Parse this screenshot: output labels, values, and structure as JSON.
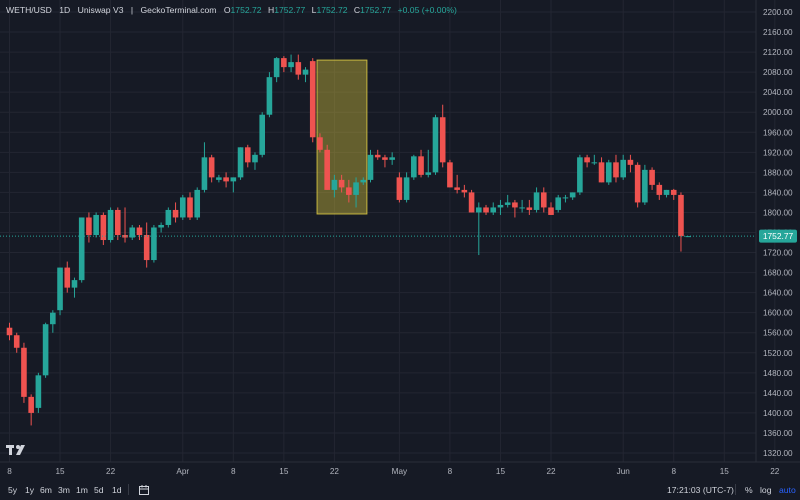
{
  "header": {
    "symbol": "WETH/USD",
    "interval": "1D",
    "exchange": "Uniswap V3",
    "separator": "|",
    "source": "GeckoTerminal.com",
    "o_label": "O",
    "o_value": "1752.72",
    "h_label": "H",
    "h_value": "1752.77",
    "l_label": "L",
    "l_value": "1752.72",
    "c_label": "C",
    "c_value": "1752.77",
    "change": "+0.05 (+0.00%)"
  },
  "colors": {
    "background": "#161a25",
    "up": "#26a69a",
    "down": "#ef5350",
    "highlight_fill": "rgba(210,190,60,0.42)",
    "highlight_stroke": "#c8b840",
    "grid": "#232632",
    "axis_text": "#b2b5be",
    "last_price_bg": "#26a69a"
  },
  "bottom_toolbar": {
    "ranges": [
      "5y",
      "1y",
      "6m",
      "3m",
      "1m",
      "5d",
      "1d"
    ],
    "goto_icon": "calendar-range-icon",
    "time": "17:21:03 (UTC-7)",
    "percent": "%",
    "log": "log",
    "auto": "auto"
  },
  "chart_data": {
    "type": "candlestick",
    "y_ticks": [
      1320,
      1360,
      1400,
      1440,
      1480,
      1520,
      1560,
      1600,
      1640,
      1680,
      1720,
      1760,
      1800,
      1840,
      1880,
      1920,
      1960,
      2000,
      2040,
      2080,
      2120,
      2160,
      2200
    ],
    "y_tick_labels": [
      "1320.00",
      "1360.00",
      "1400.00",
      "1440.00",
      "1480.00",
      "1520.00",
      "1560.00",
      "1600.00",
      "1640.00",
      "1680.00",
      "1720.00",
      "1760.00",
      "1800.00",
      "1840.00",
      "1880.00",
      "1920.00",
      "1960.00",
      "2000.00",
      "2040.00",
      "2080.00",
      "2120.00",
      "2160.00",
      "2200.00"
    ],
    "x_ticks": [
      {
        "label": "8",
        "day": 0
      },
      {
        "label": "15",
        "day": 7
      },
      {
        "label": "22",
        "day": 14
      },
      {
        "label": "Apr",
        "day": 24
      },
      {
        "label": "8",
        "day": 31
      },
      {
        "label": "15",
        "day": 38
      },
      {
        "label": "22",
        "day": 45
      },
      {
        "label": "May",
        "day": 54
      },
      {
        "label": "8",
        "day": 61
      },
      {
        "label": "15",
        "day": 68
      },
      {
        "label": "22",
        "day": 75
      },
      {
        "label": "Jun",
        "day": 85
      },
      {
        "label": "8",
        "day": 92
      },
      {
        "label": "15",
        "day": 99
      },
      {
        "label": "22",
        "day": 106
      }
    ],
    "last_price": 1752.77,
    "last_price_label": "1752.77",
    "highlight": {
      "day_start": 42.6,
      "day_end": 49.5,
      "price_low": 1797,
      "price_high": 2104
    },
    "candles": [
      [
        1570,
        1580,
        1545,
        1555
      ],
      [
        1555,
        1560,
        1520,
        1530
      ],
      [
        1530,
        1540,
        1420,
        1432
      ],
      [
        1432,
        1437,
        1375,
        1400
      ],
      [
        1410,
        1480,
        1400,
        1475
      ],
      [
        1475,
        1580,
        1470,
        1577
      ],
      [
        1577,
        1605,
        1560,
        1600
      ],
      [
        1605,
        1690,
        1595,
        1690
      ],
      [
        1690,
        1702,
        1640,
        1650
      ],
      [
        1650,
        1670,
        1630,
        1665
      ],
      [
        1665,
        1790,
        1660,
        1790
      ],
      [
        1790,
        1800,
        1740,
        1755
      ],
      [
        1755,
        1800,
        1750,
        1795
      ],
      [
        1795,
        1800,
        1735,
        1745
      ],
      [
        1745,
        1810,
        1740,
        1805
      ],
      [
        1805,
        1810,
        1745,
        1755
      ],
      [
        1755,
        1810,
        1740,
        1750
      ],
      [
        1750,
        1775,
        1745,
        1770
      ],
      [
        1770,
        1775,
        1745,
        1755
      ],
      [
        1755,
        1780,
        1690,
        1705
      ],
      [
        1705,
        1775,
        1700,
        1770
      ],
      [
        1770,
        1780,
        1760,
        1775
      ],
      [
        1775,
        1810,
        1770,
        1805
      ],
      [
        1805,
        1820,
        1780,
        1790
      ],
      [
        1790,
        1835,
        1785,
        1830
      ],
      [
        1830,
        1840,
        1785,
        1790
      ],
      [
        1790,
        1850,
        1785,
        1845
      ],
      [
        1845,
        1940,
        1840,
        1910
      ],
      [
        1910,
        1915,
        1860,
        1870
      ],
      [
        1865,
        1875,
        1860,
        1870
      ],
      [
        1870,
        1880,
        1850,
        1862
      ],
      [
        1862,
        1870,
        1840,
        1870
      ],
      [
        1870,
        1930,
        1865,
        1930
      ],
      [
        1930,
        1935,
        1890,
        1900
      ],
      [
        1900,
        1920,
        1885,
        1915
      ],
      [
        1915,
        2000,
        1910,
        1995
      ],
      [
        1995,
        2080,
        1990,
        2070
      ],
      [
        2070,
        2110,
        2060,
        2108
      ],
      [
        2108,
        2112,
        2080,
        2090
      ],
      [
        2090,
        2115,
        2080,
        2100
      ],
      [
        2100,
        2115,
        2065,
        2075
      ],
      [
        2075,
        2090,
        2060,
        2085
      ],
      [
        2102,
        2108,
        1940,
        1950
      ],
      [
        1950,
        1958,
        1920,
        1925
      ],
      [
        1925,
        1935,
        1845,
        1845
      ],
      [
        1845,
        1875,
        1830,
        1865
      ],
      [
        1865,
        1875,
        1840,
        1850
      ],
      [
        1850,
        1865,
        1820,
        1835
      ],
      [
        1835,
        1870,
        1810,
        1860
      ],
      [
        1860,
        1870,
        1855,
        1865
      ],
      [
        1865,
        1925,
        1860,
        1915
      ],
      [
        1915,
        1925,
        1905,
        1910
      ],
      [
        1910,
        1915,
        1890,
        1905
      ],
      [
        1905,
        1920,
        1895,
        1910
      ],
      [
        1870,
        1880,
        1820,
        1825
      ],
      [
        1825,
        1880,
        1820,
        1870
      ],
      [
        1870,
        1915,
        1865,
        1912
      ],
      [
        1912,
        1925,
        1870,
        1875
      ],
      [
        1875,
        1925,
        1870,
        1880
      ],
      [
        1880,
        1995,
        1875,
        1990
      ],
      [
        1990,
        2015,
        1890,
        1900
      ],
      [
        1900,
        1905,
        1850,
        1850
      ],
      [
        1850,
        1875,
        1838,
        1845
      ],
      [
        1845,
        1855,
        1830,
        1840
      ],
      [
        1840,
        1845,
        1800,
        1800
      ],
      [
        1800,
        1820,
        1715,
        1810
      ],
      [
        1810,
        1815,
        1795,
        1800
      ],
      [
        1800,
        1820,
        1795,
        1810
      ],
      [
        1810,
        1825,
        1795,
        1815
      ],
      [
        1815,
        1835,
        1810,
        1820
      ],
      [
        1820,
        1825,
        1790,
        1810
      ],
      [
        1810,
        1825,
        1800,
        1810
      ],
      [
        1810,
        1825,
        1795,
        1805
      ],
      [
        1805,
        1850,
        1800,
        1840
      ],
      [
        1840,
        1850,
        1800,
        1810
      ],
      [
        1810,
        1820,
        1795,
        1795
      ],
      [
        1805,
        1835,
        1800,
        1830
      ],
      [
        1830,
        1835,
        1820,
        1830
      ],
      [
        1830,
        1840,
        1825,
        1840
      ],
      [
        1840,
        1915,
        1835,
        1910
      ],
      [
        1910,
        1915,
        1890,
        1900
      ],
      [
        1900,
        1915,
        1895,
        1900
      ],
      [
        1900,
        1910,
        1860,
        1860
      ],
      [
        1860,
        1905,
        1855,
        1900
      ],
      [
        1900,
        1915,
        1860,
        1870
      ],
      [
        1870,
        1915,
        1865,
        1905
      ],
      [
        1905,
        1915,
        1880,
        1895
      ],
      [
        1895,
        1900,
        1810,
        1820
      ],
      [
        1820,
        1895,
        1815,
        1885
      ],
      [
        1885,
        1890,
        1845,
        1855
      ],
      [
        1855,
        1860,
        1825,
        1835
      ],
      [
        1835,
        1845,
        1830,
        1845
      ],
      [
        1845,
        1847,
        1825,
        1835
      ],
      [
        1835,
        1840,
        1722,
        1752.72
      ],
      [
        1752.72,
        1752.77,
        1752.72,
        1752.77
      ]
    ]
  }
}
